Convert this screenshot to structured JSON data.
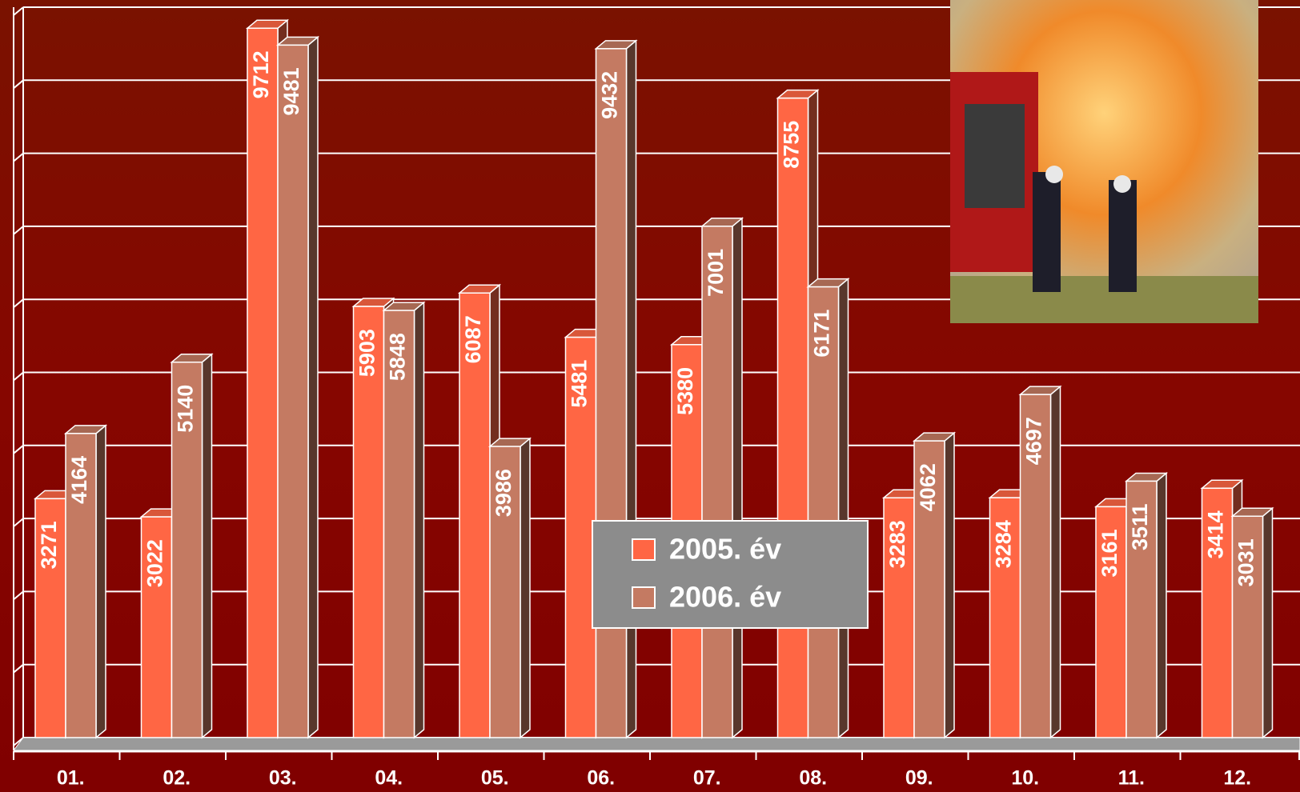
{
  "chart_data": {
    "type": "bar3d",
    "categories": [
      "01.",
      "02.",
      "03.",
      "04.",
      "05.",
      "06.",
      "07.",
      "08.",
      "09.",
      "10.",
      "11.",
      "12."
    ],
    "series": [
      {
        "name": "2005. év",
        "color": "#ff6644",
        "values": [
          3271,
          3022,
          9712,
          5903,
          6087,
          5481,
          5380,
          8755,
          3283,
          3284,
          3161,
          3414
        ]
      },
      {
        "name": "2006. év",
        "color": "#c47a62",
        "values": [
          4164,
          5140,
          9481,
          5848,
          3986,
          9432,
          7001,
          6171,
          4062,
          4697,
          3511,
          3031
        ]
      }
    ],
    "ylim": [
      0,
      10000
    ],
    "yticks": [
      0,
      1000,
      2000,
      3000,
      4000,
      5000,
      6000,
      7000,
      8000,
      9000,
      10000
    ],
    "grid": true
  }
}
